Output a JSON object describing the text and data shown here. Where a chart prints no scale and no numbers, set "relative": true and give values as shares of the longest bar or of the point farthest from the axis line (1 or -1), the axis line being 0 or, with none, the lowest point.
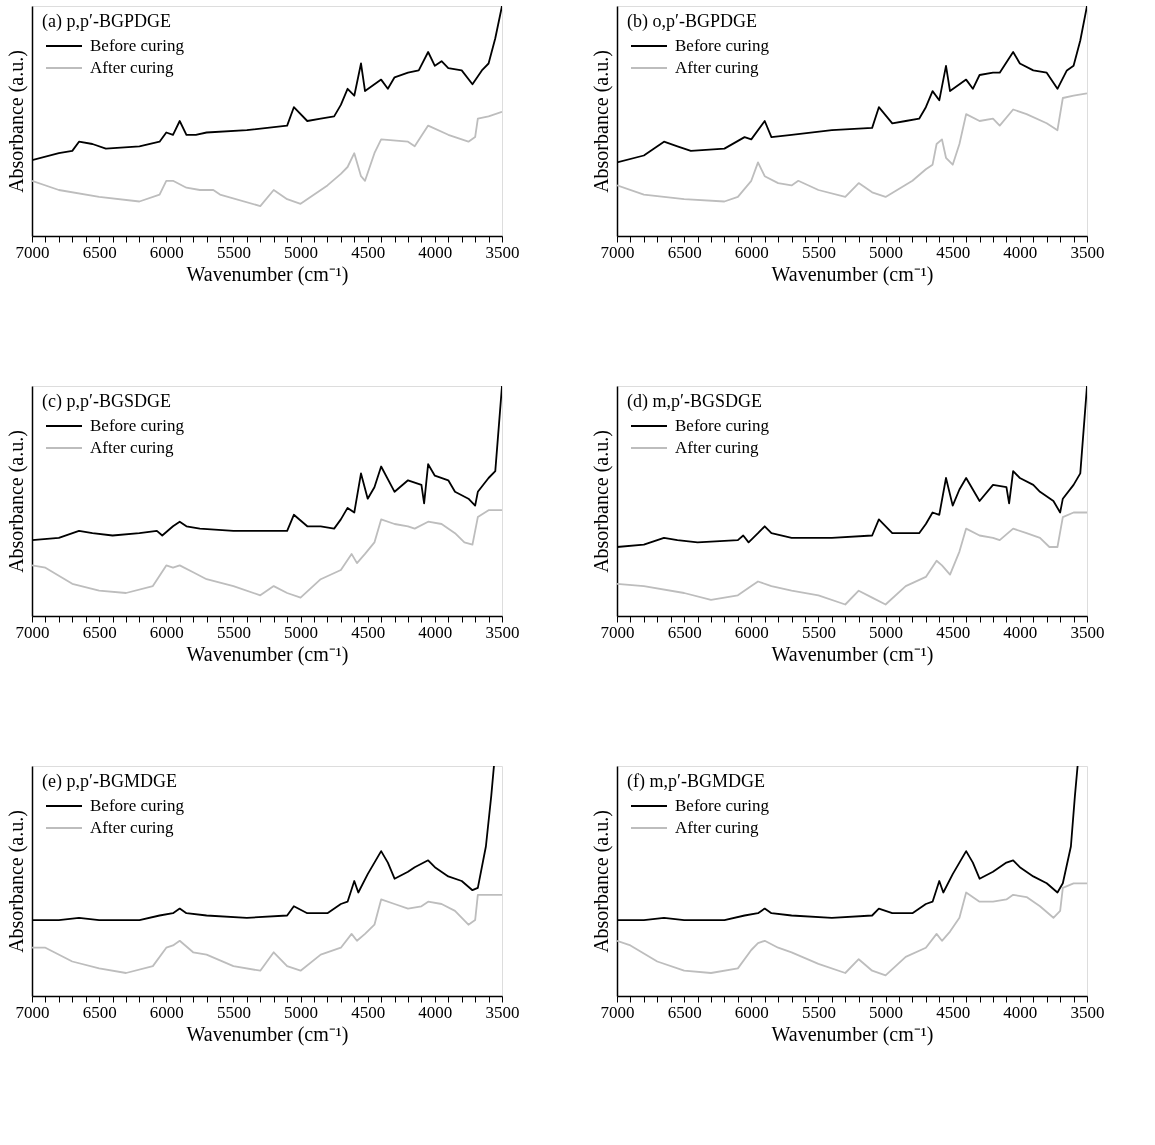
{
  "chart_data": [
    {
      "type": "line",
      "title": "(a) p,p′-BGPDGE",
      "xlabel": "Wavenumber (cm⁻¹)",
      "ylabel": "Absorbance (a.u.)",
      "relative": true,
      "legend": "top left",
      "xlim": [
        7000,
        3500
      ],
      "xticks": [
        7000,
        {
          "value": 6900,
          "label": null
        },
        {
          "value": 6800,
          "label": null
        },
        {
          "value": 6700,
          "label": null
        },
        {
          "value": 6600,
          "label": null
        },
        6500,
        {
          "value": 6400,
          "label": null
        },
        {
          "value": 6300,
          "label": null
        },
        {
          "value": 6200,
          "label": null
        },
        {
          "value": 6100,
          "label": null
        },
        6000,
        {
          "value": 5900,
          "label": null
        },
        {
          "value": 5800,
          "label": null
        },
        {
          "value": 5700,
          "label": null
        },
        {
          "value": 5600,
          "label": null
        },
        5500,
        {
          "value": 5400,
          "label": null
        },
        {
          "value": 5300,
          "label": null
        },
        {
          "value": 5200,
          "label": null
        },
        {
          "value": 5100,
          "label": null
        },
        5000,
        {
          "value": 4900,
          "label": null
        },
        {
          "value": 4800,
          "label": null
        },
        {
          "value": 4700,
          "label": null
        },
        {
          "value": 4600,
          "label": null
        },
        4500,
        {
          "value": 4400,
          "label": null
        },
        {
          "value": 4300,
          "label": null
        },
        {
          "value": 4200,
          "label": null
        },
        {
          "value": 4100,
          "label": null
        },
        4000,
        {
          "value": 3900,
          "label": null
        },
        {
          "value": 3800,
          "label": null
        },
        {
          "value": 3700,
          "label": null
        },
        {
          "value": 3600,
          "label": null
        },
        3500
      ],
      "series": [
        {
          "name": "Before curing",
          "color": "#000000",
          "x": [
            7000,
            6800,
            6700,
            6650,
            6550,
            6450,
            6200,
            6050,
            6000,
            5950,
            5900,
            5850,
            5780,
            5700,
            5400,
            5100,
            5050,
            4950,
            4850,
            4750,
            4700,
            4650,
            4600,
            4550,
            4520,
            4400,
            4350,
            4300,
            4200,
            4120,
            4050,
            4000,
            3950,
            3900,
            3800,
            3720,
            3650,
            3600,
            3550,
            3500
          ],
          "values": [
            0.33,
            0.36,
            0.37,
            0.41,
            0.4,
            0.38,
            0.39,
            0.41,
            0.45,
            0.44,
            0.5,
            0.44,
            0.44,
            0.45,
            0.46,
            0.48,
            0.56,
            0.5,
            0.51,
            0.52,
            0.57,
            0.64,
            0.61,
            0.75,
            0.63,
            0.68,
            0.64,
            0.69,
            0.71,
            0.72,
            0.8,
            0.74,
            0.76,
            0.73,
            0.72,
            0.66,
            0.72,
            0.75,
            0.86,
            1
          ]
        },
        {
          "name": "After curing",
          "color": "#bdbdbd",
          "x": [
            7000,
            6800,
            6500,
            6200,
            6050,
            6000,
            5950,
            5850,
            5750,
            5650,
            5600,
            5300,
            5200,
            5100,
            5000,
            4800,
            4700,
            4650,
            4600,
            4550,
            4520,
            4450,
            4400,
            4200,
            4150,
            4050,
            3900,
            3750,
            3700,
            3680,
            3600,
            3500
          ],
          "values": [
            0.24,
            0.2,
            0.17,
            0.15,
            0.18,
            0.24,
            0.24,
            0.21,
            0.2,
            0.2,
            0.18,
            0.13,
            0.2,
            0.16,
            0.14,
            0.22,
            0.27,
            0.3,
            0.36,
            0.26,
            0.24,
            0.36,
            0.42,
            0.41,
            0.39,
            0.48,
            0.44,
            0.41,
            0.43,
            0.51,
            0.52,
            0.54
          ]
        }
      ]
    },
    {
      "type": "line",
      "title": "(b) o,p′-BGPDGE",
      "xlabel": "Wavenumber (cm⁻¹)",
      "ylabel": "Absorbance (a.u.)",
      "relative": true,
      "legend": "top left",
      "xlim": [
        7000,
        3500
      ],
      "xticks": [
        7000,
        {
          "value": 6900,
          "label": null
        },
        {
          "value": 6800,
          "label": null
        },
        {
          "value": 6700,
          "label": null
        },
        {
          "value": 6600,
          "label": null
        },
        6500,
        {
          "value": 6400,
          "label": null
        },
        {
          "value": 6300,
          "label": null
        },
        {
          "value": 6200,
          "label": null
        },
        {
          "value": 6100,
          "label": null
        },
        6000,
        {
          "value": 5900,
          "label": null
        },
        {
          "value": 5800,
          "label": null
        },
        {
          "value": 5700,
          "label": null
        },
        {
          "value": 5600,
          "label": null
        },
        5500,
        {
          "value": 5400,
          "label": null
        },
        {
          "value": 5300,
          "label": null
        },
        {
          "value": 5200,
          "label": null
        },
        {
          "value": 5100,
          "label": null
        },
        5000,
        {
          "value": 4900,
          "label": null
        },
        {
          "value": 4800,
          "label": null
        },
        {
          "value": 4700,
          "label": null
        },
        {
          "value": 4600,
          "label": null
        },
        4500,
        {
          "value": 4400,
          "label": null
        },
        {
          "value": 4300,
          "label": null
        },
        {
          "value": 4200,
          "label": null
        },
        {
          "value": 4100,
          "label": null
        },
        4000,
        {
          "value": 3900,
          "label": null
        },
        {
          "value": 3800,
          "label": null
        },
        {
          "value": 3700,
          "label": null
        },
        {
          "value": 3600,
          "label": null
        },
        3500
      ],
      "series": [
        {
          "name": "Before curing",
          "color": "#000000",
          "x": [
            7000,
            6800,
            6650,
            6550,
            6450,
            6200,
            6050,
            6000,
            5900,
            5850,
            5700,
            5400,
            5100,
            5050,
            4950,
            4850,
            4750,
            4700,
            4650,
            4600,
            4550,
            4520,
            4400,
            4350,
            4300,
            4200,
            4150,
            4050,
            4000,
            3900,
            3800,
            3720,
            3650,
            3600,
            3550,
            3500
          ],
          "values": [
            0.32,
            0.35,
            0.41,
            0.39,
            0.37,
            0.38,
            0.43,
            0.42,
            0.5,
            0.43,
            0.44,
            0.46,
            0.47,
            0.56,
            0.49,
            0.5,
            0.51,
            0.56,
            0.63,
            0.59,
            0.74,
            0.63,
            0.68,
            0.64,
            0.7,
            0.71,
            0.71,
            0.8,
            0.75,
            0.72,
            0.71,
            0.64,
            0.72,
            0.74,
            0.85,
            1
          ]
        },
        {
          "name": "After curing",
          "color": "#bdbdbd",
          "x": [
            7000,
            6800,
            6500,
            6200,
            6100,
            6000,
            5950,
            5900,
            5800,
            5700,
            5650,
            5500,
            5300,
            5200,
            5100,
            5000,
            4800,
            4700,
            4650,
            4620,
            4580,
            4550,
            4500,
            4450,
            4400,
            4300,
            4200,
            4150,
            4050,
            3950,
            3800,
            3720,
            3680,
            3600,
            3500
          ],
          "values": [
            0.22,
            0.18,
            0.16,
            0.15,
            0.17,
            0.24,
            0.32,
            0.26,
            0.23,
            0.22,
            0.24,
            0.2,
            0.17,
            0.23,
            0.19,
            0.17,
            0.24,
            0.29,
            0.31,
            0.4,
            0.42,
            0.34,
            0.31,
            0.4,
            0.53,
            0.5,
            0.51,
            0.48,
            0.55,
            0.53,
            0.49,
            0.46,
            0.6,
            0.61,
            0.62
          ]
        }
      ]
    },
    {
      "type": "line",
      "title": "(c) p,p′-BGSDGE",
      "xlabel": "Wavenumber (cm⁻¹)",
      "ylabel": "Absorbance (a.u.)",
      "relative": true,
      "legend": "top left",
      "xlim": [
        7000,
        3500
      ],
      "xticks": [
        7000,
        {
          "value": 6900,
          "label": null
        },
        {
          "value": 6800,
          "label": null
        },
        {
          "value": 6700,
          "label": null
        },
        {
          "value": 6600,
          "label": null
        },
        6500,
        {
          "value": 6400,
          "label": null
        },
        {
          "value": 6300,
          "label": null
        },
        {
          "value": 6200,
          "label": null
        },
        {
          "value": 6100,
          "label": null
        },
        6000,
        {
          "value": 5900,
          "label": null
        },
        {
          "value": 5800,
          "label": null
        },
        {
          "value": 5700,
          "label": null
        },
        {
          "value": 5600,
          "label": null
        },
        5500,
        {
          "value": 5400,
          "label": null
        },
        {
          "value": 5300,
          "label": null
        },
        {
          "value": 5200,
          "label": null
        },
        {
          "value": 5100,
          "label": null
        },
        5000,
        {
          "value": 4900,
          "label": null
        },
        {
          "value": 4800,
          "label": null
        },
        {
          "value": 4700,
          "label": null
        },
        {
          "value": 4600,
          "label": null
        },
        4500,
        {
          "value": 4400,
          "label": null
        },
        {
          "value": 4300,
          "label": null
        },
        {
          "value": 4200,
          "label": null
        },
        {
          "value": 4100,
          "label": null
        },
        4000,
        {
          "value": 3900,
          "label": null
        },
        {
          "value": 3800,
          "label": null
        },
        {
          "value": 3700,
          "label": null
        },
        {
          "value": 3600,
          "label": null
        },
        3500
      ],
      "series": [
        {
          "name": "Before curing",
          "color": "#000000",
          "x": [
            7000,
            6800,
            6650,
            6550,
            6400,
            6200,
            6070,
            6030,
            5950,
            5900,
            5850,
            5750,
            5500,
            5200,
            5100,
            5050,
            4950,
            4850,
            4750,
            4700,
            4650,
            4600,
            4550,
            4500,
            4450,
            4400,
            4300,
            4200,
            4100,
            4080,
            4050,
            4000,
            3900,
            3850,
            3750,
            3700,
            3680,
            3600,
            3550,
            3500
          ],
          "values": [
            0.33,
            0.34,
            0.37,
            0.36,
            0.35,
            0.36,
            0.37,
            0.35,
            0.39,
            0.41,
            0.39,
            0.38,
            0.37,
            0.37,
            0.37,
            0.44,
            0.39,
            0.39,
            0.38,
            0.42,
            0.47,
            0.45,
            0.62,
            0.51,
            0.56,
            0.65,
            0.54,
            0.59,
            0.57,
            0.49,
            0.66,
            0.61,
            0.59,
            0.54,
            0.51,
            0.48,
            0.54,
            0.6,
            0.63,
            1
          ]
        },
        {
          "name": "After curing",
          "color": "#bdbdbd",
          "x": [
            7000,
            6900,
            6700,
            6500,
            6300,
            6100,
            6000,
            5950,
            5900,
            5800,
            5700,
            5500,
            5300,
            5200,
            5100,
            5000,
            4850,
            4700,
            4620,
            4580,
            4520,
            4450,
            4400,
            4300,
            4200,
            4150,
            4050,
            3950,
            3850,
            3780,
            3720,
            3680,
            3600,
            3500
          ],
          "values": [
            0.22,
            0.21,
            0.14,
            0.11,
            0.1,
            0.13,
            0.22,
            0.21,
            0.22,
            0.19,
            0.16,
            0.13,
            0.09,
            0.13,
            0.1,
            0.08,
            0.16,
            0.2,
            0.27,
            0.23,
            0.27,
            0.32,
            0.42,
            0.4,
            0.39,
            0.38,
            0.41,
            0.4,
            0.36,
            0.32,
            0.31,
            0.43,
            0.46,
            0.46
          ]
        }
      ]
    },
    {
      "type": "line",
      "title": "(d) m,p′-BGSDGE",
      "xlabel": "Wavenumber (cm⁻¹)",
      "ylabel": "Absorbance (a.u.)",
      "relative": true,
      "legend": "top left",
      "xlim": [
        7000,
        3500
      ],
      "xticks": [
        7000,
        {
          "value": 6900,
          "label": null
        },
        {
          "value": 6800,
          "label": null
        },
        {
          "value": 6700,
          "label": null
        },
        {
          "value": 6600,
          "label": null
        },
        6500,
        {
          "value": 6400,
          "label": null
        },
        {
          "value": 6300,
          "label": null
        },
        {
          "value": 6200,
          "label": null
        },
        {
          "value": 6100,
          "label": null
        },
        6000,
        {
          "value": 5900,
          "label": null
        },
        {
          "value": 5800,
          "label": null
        },
        {
          "value": 5700,
          "label": null
        },
        {
          "value": 5600,
          "label": null
        },
        5500,
        {
          "value": 5400,
          "label": null
        },
        {
          "value": 5300,
          "label": null
        },
        {
          "value": 5200,
          "label": null
        },
        {
          "value": 5100,
          "label": null
        },
        5000,
        {
          "value": 4900,
          "label": null
        },
        {
          "value": 4800,
          "label": null
        },
        {
          "value": 4700,
          "label": null
        },
        {
          "value": 4600,
          "label": null
        },
        4500,
        {
          "value": 4400,
          "label": null
        },
        {
          "value": 4300,
          "label": null
        },
        {
          "value": 4200,
          "label": null
        },
        {
          "value": 4100,
          "label": null
        },
        4000,
        {
          "value": 3900,
          "label": null
        },
        {
          "value": 3800,
          "label": null
        },
        {
          "value": 3700,
          "label": null
        },
        {
          "value": 3600,
          "label": null
        },
        3500
      ],
      "series": [
        {
          "name": "Before curing",
          "color": "#000000",
          "x": [
            7000,
            6800,
            6650,
            6550,
            6400,
            6100,
            6060,
            6020,
            5950,
            5900,
            5850,
            5700,
            5400,
            5100,
            5050,
            4950,
            4850,
            4750,
            4700,
            4650,
            4600,
            4550,
            4500,
            4450,
            4400,
            4300,
            4200,
            4100,
            4080,
            4050,
            4000,
            3900,
            3850,
            3750,
            3700,
            3680,
            3600,
            3550,
            3500
          ],
          "values": [
            0.3,
            0.31,
            0.34,
            0.33,
            0.32,
            0.33,
            0.35,
            0.32,
            0.36,
            0.39,
            0.36,
            0.34,
            0.34,
            0.35,
            0.42,
            0.36,
            0.36,
            0.36,
            0.4,
            0.45,
            0.44,
            0.6,
            0.48,
            0.55,
            0.6,
            0.5,
            0.57,
            0.56,
            0.49,
            0.63,
            0.6,
            0.57,
            0.54,
            0.5,
            0.45,
            0.51,
            0.57,
            0.62,
            1
          ]
        },
        {
          "name": "After curing",
          "color": "#bdbdbd",
          "x": [
            7000,
            6800,
            6500,
            6300,
            6100,
            6000,
            5950,
            5850,
            5700,
            5500,
            5300,
            5200,
            5100,
            5000,
            4850,
            4700,
            4620,
            4580,
            4520,
            4450,
            4400,
            4300,
            4200,
            4150,
            4050,
            3950,
            3850,
            3780,
            3720,
            3680,
            3600,
            3500
          ],
          "values": [
            0.14,
            0.13,
            0.1,
            0.07,
            0.09,
            0.13,
            0.15,
            0.13,
            0.11,
            0.09,
            0.05,
            0.11,
            0.08,
            0.05,
            0.13,
            0.17,
            0.24,
            0.22,
            0.18,
            0.28,
            0.38,
            0.35,
            0.34,
            0.33,
            0.38,
            0.36,
            0.34,
            0.3,
            0.3,
            0.43,
            0.45,
            0.45
          ]
        }
      ]
    },
    {
      "type": "line",
      "title": "(e) p,p′-BGMDGE",
      "xlabel": "Wavenumber (cm⁻¹)",
      "ylabel": "Absorbance (a.u.)",
      "relative": true,
      "legend": "top left",
      "xlim": [
        7000,
        3500
      ],
      "xticks": [
        7000,
        {
          "value": 6900,
          "label": null
        },
        {
          "value": 6800,
          "label": null
        },
        {
          "value": 6700,
          "label": null
        },
        {
          "value": 6600,
          "label": null
        },
        6500,
        {
          "value": 6400,
          "label": null
        },
        {
          "value": 6300,
          "label": null
        },
        {
          "value": 6200,
          "label": null
        },
        {
          "value": 6100,
          "label": null
        },
        6000,
        {
          "value": 5900,
          "label": null
        },
        {
          "value": 5800,
          "label": null
        },
        {
          "value": 5700,
          "label": null
        },
        {
          "value": 5600,
          "label": null
        },
        5500,
        {
          "value": 5400,
          "label": null
        },
        {
          "value": 5300,
          "label": null
        },
        {
          "value": 5200,
          "label": null
        },
        {
          "value": 5100,
          "label": null
        },
        5000,
        {
          "value": 4900,
          "label": null
        },
        {
          "value": 4800,
          "label": null
        },
        {
          "value": 4700,
          "label": null
        },
        {
          "value": 4600,
          "label": null
        },
        4500,
        {
          "value": 4400,
          "label": null
        },
        {
          "value": 4300,
          "label": null
        },
        {
          "value": 4200,
          "label": null
        },
        {
          "value": 4100,
          "label": null
        },
        4000,
        {
          "value": 3900,
          "label": null
        },
        {
          "value": 3800,
          "label": null
        },
        {
          "value": 3700,
          "label": null
        },
        {
          "value": 3600,
          "label": null
        },
        3500
      ],
      "series": [
        {
          "name": "Before curing",
          "color": "#000000",
          "x": [
            7000,
            6800,
            6650,
            6500,
            6200,
            6050,
            5950,
            5900,
            5850,
            5700,
            5400,
            5100,
            5050,
            4950,
            4800,
            4700,
            4650,
            4600,
            4570,
            4500,
            4400,
            4350,
            4300,
            4200,
            4150,
            4050,
            4000,
            3900,
            3800,
            3720,
            3680,
            3620,
            3580,
            3560
          ],
          "values": [
            0.33,
            0.33,
            0.34,
            0.33,
            0.33,
            0.35,
            0.36,
            0.38,
            0.36,
            0.35,
            0.34,
            0.35,
            0.39,
            0.36,
            0.36,
            0.4,
            0.41,
            0.5,
            0.45,
            0.53,
            0.63,
            0.58,
            0.51,
            0.54,
            0.56,
            0.59,
            0.56,
            0.52,
            0.5,
            0.46,
            0.47,
            0.65,
            0.87,
            1
          ]
        },
        {
          "name": "After curing",
          "color": "#bdbdbd",
          "x": [
            7000,
            6900,
            6700,
            6500,
            6300,
            6100,
            6000,
            5950,
            5900,
            5800,
            5700,
            5500,
            5300,
            5200,
            5100,
            5000,
            4850,
            4700,
            4620,
            4580,
            4520,
            4450,
            4400,
            4300,
            4200,
            4100,
            4050,
            3950,
            3850,
            3750,
            3700,
            3680,
            3600,
            3500
          ],
          "values": [
            0.21,
            0.21,
            0.15,
            0.12,
            0.1,
            0.13,
            0.21,
            0.22,
            0.24,
            0.19,
            0.18,
            0.13,
            0.11,
            0.19,
            0.13,
            0.11,
            0.18,
            0.21,
            0.27,
            0.24,
            0.27,
            0.31,
            0.42,
            0.4,
            0.38,
            0.39,
            0.41,
            0.4,
            0.37,
            0.31,
            0.33,
            0.44,
            0.44,
            0.44
          ]
        }
      ]
    },
    {
      "type": "line",
      "title": "(f) m,p′-BGMDGE",
      "xlabel": "Wavenumber (cm⁻¹)",
      "ylabel": "Absorbance (a.u.)",
      "relative": true,
      "legend": "top left",
      "xlim": [
        7000,
        3500
      ],
      "xticks": [
        7000,
        {
          "value": 6900,
          "label": null
        },
        {
          "value": 6800,
          "label": null
        },
        {
          "value": 6700,
          "label": null
        },
        {
          "value": 6600,
          "label": null
        },
        6500,
        {
          "value": 6400,
          "label": null
        },
        {
          "value": 6300,
          "label": null
        },
        {
          "value": 6200,
          "label": null
        },
        {
          "value": 6100,
          "label": null
        },
        6000,
        {
          "value": 5900,
          "label": null
        },
        {
          "value": 5800,
          "label": null
        },
        {
          "value": 5700,
          "label": null
        },
        {
          "value": 5600,
          "label": null
        },
        5500,
        {
          "value": 5400,
          "label": null
        },
        {
          "value": 5300,
          "label": null
        },
        {
          "value": 5200,
          "label": null
        },
        {
          "value": 5100,
          "label": null
        },
        5000,
        {
          "value": 4900,
          "label": null
        },
        {
          "value": 4800,
          "label": null
        },
        {
          "value": 4700,
          "label": null
        },
        {
          "value": 4600,
          "label": null
        },
        4500,
        {
          "value": 4400,
          "label": null
        },
        {
          "value": 4300,
          "label": null
        },
        {
          "value": 4200,
          "label": null
        },
        {
          "value": 4100,
          "label": null
        },
        4000,
        {
          "value": 3900,
          "label": null
        },
        {
          "value": 3800,
          "label": null
        },
        {
          "value": 3700,
          "label": null
        },
        {
          "value": 3600,
          "label": null
        },
        3500
      ],
      "series": [
        {
          "name": "Before curing",
          "color": "#000000",
          "x": [
            7000,
            6800,
            6650,
            6500,
            6200,
            6050,
            5950,
            5900,
            5850,
            5700,
            5400,
            5100,
            5050,
            4950,
            4800,
            4700,
            4650,
            4600,
            4570,
            4500,
            4400,
            4350,
            4300,
            4200,
            4100,
            4050,
            4000,
            3900,
            3800,
            3720,
            3680,
            3620,
            3590,
            3570
          ],
          "values": [
            0.33,
            0.33,
            0.34,
            0.33,
            0.33,
            0.35,
            0.36,
            0.38,
            0.36,
            0.35,
            0.34,
            0.35,
            0.38,
            0.36,
            0.36,
            0.4,
            0.41,
            0.5,
            0.45,
            0.53,
            0.63,
            0.58,
            0.51,
            0.54,
            0.58,
            0.59,
            0.56,
            0.52,
            0.49,
            0.45,
            0.49,
            0.65,
            0.87,
            1
          ]
        },
        {
          "name": "After curing",
          "color": "#bdbdbd",
          "x": [
            7000,
            6900,
            6700,
            6500,
            6300,
            6100,
            6000,
            5950,
            5900,
            5800,
            5700,
            5500,
            5300,
            5200,
            5100,
            5000,
            4850,
            4700,
            4620,
            4580,
            4520,
            4450,
            4400,
            4300,
            4200,
            4100,
            4050,
            3950,
            3850,
            3750,
            3700,
            3680,
            3600,
            3500
          ],
          "values": [
            0.24,
            0.22,
            0.15,
            0.11,
            0.1,
            0.12,
            0.2,
            0.23,
            0.24,
            0.21,
            0.19,
            0.14,
            0.1,
            0.16,
            0.11,
            0.09,
            0.17,
            0.21,
            0.27,
            0.24,
            0.28,
            0.34,
            0.45,
            0.41,
            0.41,
            0.42,
            0.44,
            0.43,
            0.39,
            0.34,
            0.37,
            0.47,
            0.49,
            0.49
          ]
        }
      ]
    }
  ]
}
